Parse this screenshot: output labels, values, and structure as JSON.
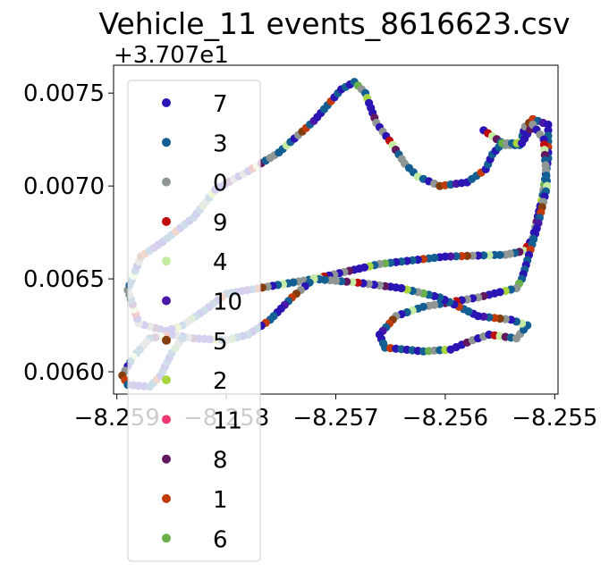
{
  "chart_data": {
    "type": "scatter",
    "title": "Vehicle_11 events_8616623.csv",
    "xlabel": "",
    "ylabel": "",
    "y_offset_label": "+3.707e1",
    "y_offset": 37.07,
    "xlim": [
      -8.25903,
      -8.25497
    ],
    "ylim": [
      0.00588,
      0.00765
    ],
    "xticks": [
      {
        "value": -8.259,
        "label": "−8.259"
      },
      {
        "value": -8.258,
        "label": "−8.258"
      },
      {
        "value": -8.257,
        "label": "−8.257"
      },
      {
        "value": -8.256,
        "label": "−8.256"
      },
      {
        "value": -8.255,
        "label": "−8.255"
      }
    ],
    "yticks": [
      {
        "value": 0.006,
        "label": "0.0060"
      },
      {
        "value": 0.0065,
        "label": "0.0065"
      },
      {
        "value": 0.007,
        "label": "0.0070"
      },
      {
        "value": 0.0075,
        "label": "0.0075"
      }
    ],
    "grid": false,
    "legend_placement": "upper-left",
    "series": [
      {
        "name": "7",
        "color": "#2b14b4"
      },
      {
        "name": "3",
        "color": "#135f93"
      },
      {
        "name": "0",
        "color": "#8f9794"
      },
      {
        "name": "9",
        "color": "#c0090b"
      },
      {
        "name": "4",
        "color": "#c6eca3"
      },
      {
        "name": "10",
        "color": "#4a17a6"
      },
      {
        "name": "5",
        "color": "#843d0f"
      },
      {
        "name": "2",
        "color": "#a8d63e"
      },
      {
        "name": "11",
        "color": "#f2386f"
      },
      {
        "name": "8",
        "color": "#62175f"
      },
      {
        "name": "1",
        "color": "#c23a06"
      },
      {
        "name": "6",
        "color": "#6ab04c"
      }
    ],
    "path": [
      [
        -8.25565,
        0.0073
      ],
      [
        -8.25545,
        0.00722
      ],
      [
        -8.25532,
        0.00722
      ],
      [
        -8.25527,
        0.00732
      ],
      [
        -8.2552,
        0.00736
      ],
      [
        -8.25506,
        0.00733
      ],
      [
        -8.25506,
        0.00715
      ],
      [
        -8.25511,
        0.00695
      ],
      [
        -8.2552,
        0.00672
      ],
      [
        -8.25528,
        0.00665
      ],
      [
        -8.25545,
        0.00663
      ],
      [
        -8.256,
        0.00662
      ],
      [
        -8.2566,
        0.00658
      ],
      [
        -8.2572,
        0.0065
      ],
      [
        -8.258,
        0.00642
      ],
      [
        -8.2582,
        0.00633
      ],
      [
        -8.2584,
        0.00625
      ],
      [
        -8.25855,
        0.00622
      ],
      [
        -8.2588,
        0.00626
      ],
      [
        -8.2589,
        0.00644
      ],
      [
        -8.25878,
        0.00662
      ],
      [
        -8.25858,
        0.0067
      ],
      [
        -8.2583,
        0.00683
      ],
      [
        -8.2581,
        0.00698
      ],
      [
        -8.2578,
        0.00708
      ],
      [
        -8.25752,
        0.00718
      ],
      [
        -8.2572,
        0.00735
      ],
      [
        -8.25695,
        0.00752
      ],
      [
        -8.25683,
        0.00756
      ],
      [
        -8.25673,
        0.0075
      ],
      [
        -8.25663,
        0.00734
      ],
      [
        -8.25648,
        0.00722
      ],
      [
        -8.25637,
        0.00712
      ],
      [
        -8.25625,
        0.00705
      ],
      [
        -8.25605,
        0.007
      ],
      [
        -8.2558,
        0.00702
      ],
      [
        -8.25563,
        0.00709
      ],
      [
        -8.25557,
        0.00717
      ],
      [
        -8.25548,
        0.00723
      ],
      [
        -8.2553,
        0.00723
      ],
      [
        -8.2552,
        0.00733
      ],
      [
        -8.2551,
        0.00725
      ],
      [
        -8.25507,
        0.007
      ],
      [
        -8.25515,
        0.0068
      ],
      [
        -8.25525,
        0.0066
      ],
      [
        -8.2553,
        0.0065
      ],
      [
        -8.25535,
        0.00645
      ],
      [
        -8.2557,
        0.0064
      ],
      [
        -8.2562,
        0.00635
      ],
      [
        -8.25645,
        0.0063
      ],
      [
        -8.2566,
        0.0062
      ],
      [
        -8.25655,
        0.00613
      ],
      [
        -8.2562,
        0.00611
      ],
      [
        -8.25595,
        0.00612
      ],
      [
        -8.25575,
        0.00617
      ],
      [
        -8.2556,
        0.0062
      ],
      [
        -8.25535,
        0.00618
      ],
      [
        -8.25525,
        0.00625
      ],
      [
        -8.2554,
        0.00628
      ],
      [
        -8.2557,
        0.0063
      ],
      [
        -8.25605,
        0.0064
      ],
      [
        -8.2564,
        0.00645
      ],
      [
        -8.2568,
        0.00648
      ],
      [
        -8.2572,
        0.0065
      ],
      [
        -8.2574,
        0.0064
      ],
      [
        -8.2576,
        0.00628
      ],
      [
        -8.2578,
        0.0062
      ],
      [
        -8.258,
        0.00617
      ],
      [
        -8.2583,
        0.00618
      ],
      [
        -8.2585,
        0.0062
      ],
      [
        -8.2587,
        0.00618
      ],
      [
        -8.25885,
        0.00608
      ],
      [
        -8.25895,
        0.00598
      ],
      [
        -8.2589,
        0.00593
      ],
      [
        -8.2587,
        0.00592
      ],
      [
        -8.2586,
        0.00598
      ],
      [
        -8.2585,
        0.0061
      ],
      [
        -8.2584,
        0.00618
      ]
    ]
  }
}
